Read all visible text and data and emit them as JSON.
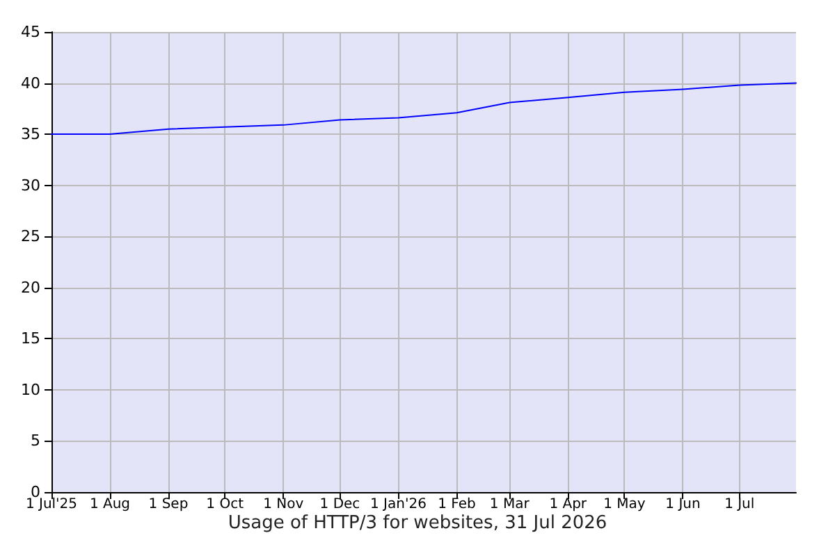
{
  "chart_data": {
    "type": "line",
    "title": "Usage of HTTP/3 for websites, 31 Jul 2026",
    "x": [
      "2025-07-01",
      "2025-08-01",
      "2025-09-01",
      "2025-10-01",
      "2025-11-01",
      "2025-12-01",
      "2026-01-01",
      "2026-02-01",
      "2026-03-01",
      "2026-04-01",
      "2026-05-01",
      "2026-06-01",
      "2026-07-01",
      "2026-07-31"
    ],
    "series": [
      {
        "color": "#0000ff",
        "values": [
          35.0,
          35.0,
          35.5,
          35.7,
          35.9,
          36.4,
          36.6,
          37.1,
          38.1,
          38.6,
          39.1,
          39.4,
          39.8,
          40.0
        ]
      }
    ],
    "xlim": [
      "2025-07-01",
      "2026-07-31"
    ],
    "xticks": [
      {
        "value": "2025-07-01",
        "label": "1 Jul'25"
      },
      {
        "value": "2025-08-01",
        "label": "1 Aug"
      },
      {
        "value": "2025-09-01",
        "label": "1 Sep"
      },
      {
        "value": "2025-10-01",
        "label": "1 Oct"
      },
      {
        "value": "2025-11-01",
        "label": "1 Nov"
      },
      {
        "value": "2025-12-01",
        "label": "1 Dec"
      },
      {
        "value": "2026-01-01",
        "label": "1 Jan'26"
      },
      {
        "value": "2026-02-01",
        "label": "1 Feb"
      },
      {
        "value": "2026-03-01",
        "label": "1 Mar"
      },
      {
        "value": "2026-04-01",
        "label": "1 Apr"
      },
      {
        "value": "2026-05-01",
        "label": "1 May"
      },
      {
        "value": "2026-06-01",
        "label": "1 Jun"
      },
      {
        "value": "2026-07-01",
        "label": "1 Jul"
      }
    ],
    "ylim": [
      0,
      45
    ],
    "yticks": [
      0,
      5,
      10,
      15,
      20,
      25,
      30,
      35,
      40,
      45
    ],
    "grid": true,
    "marker": "none",
    "line_style": "solid"
  }
}
